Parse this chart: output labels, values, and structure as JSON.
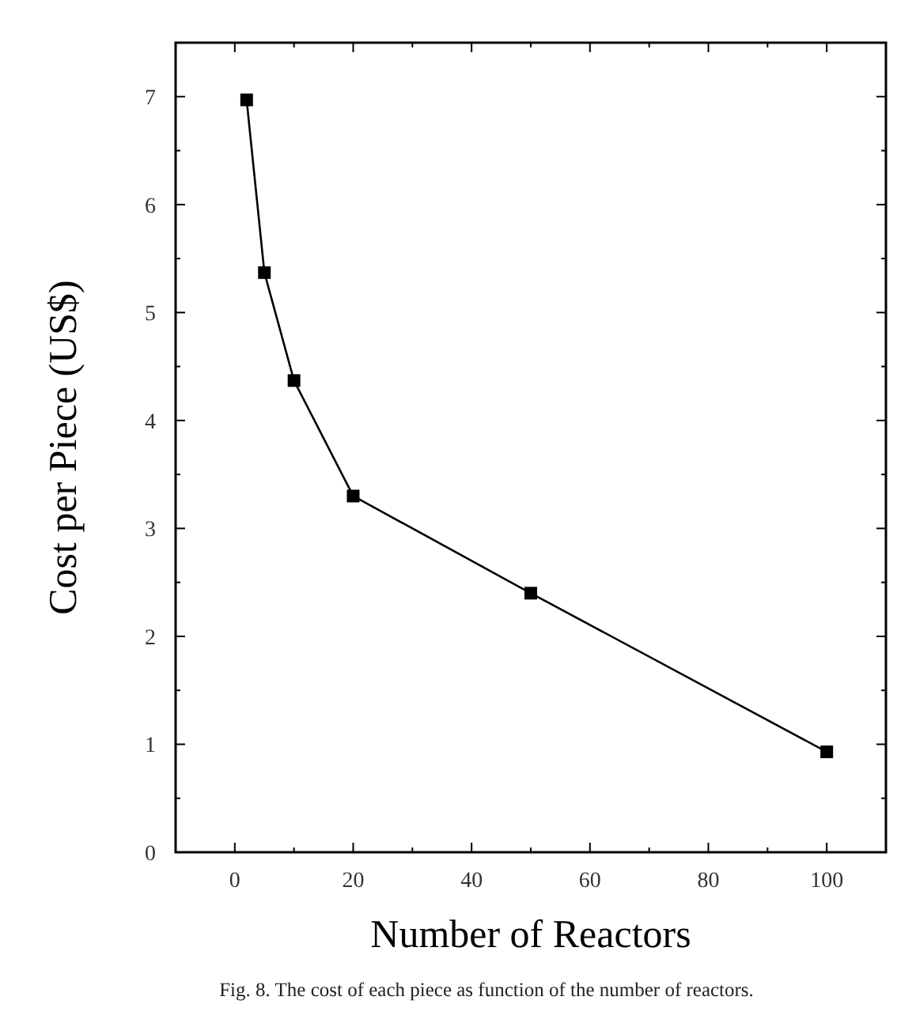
{
  "chart_data": {
    "type": "line",
    "xlabel": "Number of Reactors",
    "ylabel": "Cost per Piece (US$)",
    "annotations": [
      "Fig. 8.  The cost of each piece as function of the number of reactors."
    ],
    "x": [
      2,
      5,
      10,
      20,
      50,
      100
    ],
    "series": [
      {
        "color": "#000000",
        "values": [
          6.97,
          5.37,
          4.37,
          3.3,
          2.4,
          0.93
        ]
      }
    ],
    "xlim": [
      -10,
      110
    ],
    "xticks": [
      0,
      20,
      40,
      60,
      80,
      100
    ],
    "ylim": [
      0,
      7.5
    ],
    "yticks": [
      0,
      1,
      2,
      3,
      4,
      5,
      6,
      7
    ],
    "marker": "square",
    "line_style": "solid"
  }
}
